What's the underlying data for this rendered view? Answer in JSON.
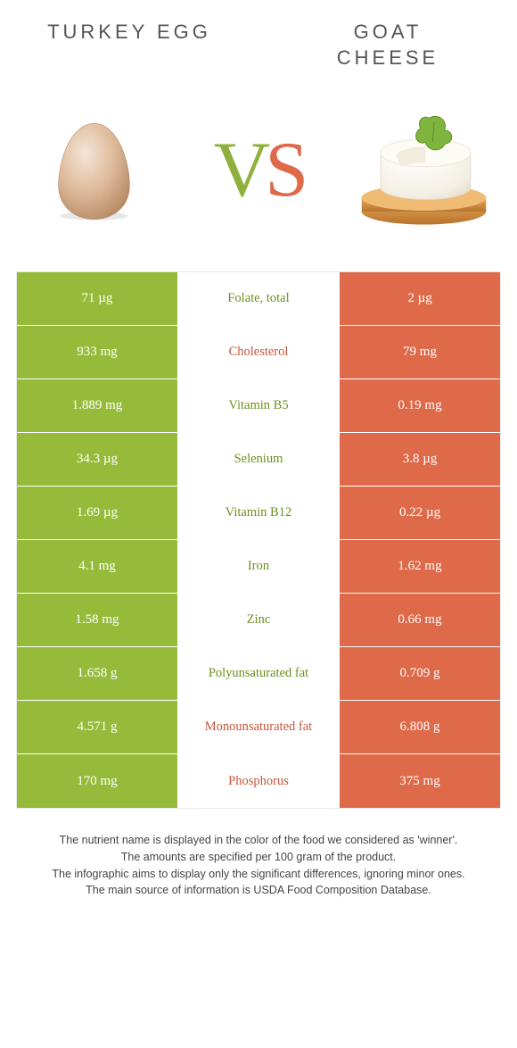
{
  "header": {
    "left_title": "TURKEY EGG",
    "right_title_line1": "GOAT",
    "right_title_line2": "CHEESE"
  },
  "vs": {
    "v": "V",
    "s": "S"
  },
  "colors": {
    "left_bg": "#96bb3a",
    "right_bg": "#de6a4a",
    "left_text": "#6d8f1e",
    "right_text": "#c8543a",
    "background": "#ffffff",
    "border": "#e8e8e8"
  },
  "table": {
    "rows": [
      {
        "left": "71 µg",
        "label": "Folate, total",
        "right": "2 µg",
        "winner": "left"
      },
      {
        "left": "933 mg",
        "label": "Cholesterol",
        "right": "79 mg",
        "winner": "right"
      },
      {
        "left": "1.889 mg",
        "label": "Vitamin B5",
        "right": "0.19 mg",
        "winner": "left"
      },
      {
        "left": "34.3 µg",
        "label": "Selenium",
        "right": "3.8 µg",
        "winner": "left"
      },
      {
        "left": "1.69 µg",
        "label": "Vitamin B12",
        "right": "0.22 µg",
        "winner": "left"
      },
      {
        "left": "4.1 mg",
        "label": "Iron",
        "right": "1.62 mg",
        "winner": "left"
      },
      {
        "left": "1.58 mg",
        "label": "Zinc",
        "right": "0.66 mg",
        "winner": "left"
      },
      {
        "left": "1.658 g",
        "label": "Polyunsaturated fat",
        "right": "0.709 g",
        "winner": "left"
      },
      {
        "left": "4.571 g",
        "label": "Monounsaturated fat",
        "right": "6.808 g",
        "winner": "right"
      },
      {
        "left": "170 mg",
        "label": "Phosphorus",
        "right": "375 mg",
        "winner": "right"
      }
    ]
  },
  "footer": {
    "line1": "The nutrient name is displayed in the color of the food we considered as 'winner'.",
    "line2": "The amounts are specified per 100 gram of the product.",
    "line3": "The infographic aims to display only the significant differences, ignoring minor ones.",
    "line4": "The main source of information is USDA Food Composition Database."
  },
  "icons": {
    "left": "turkey-egg-icon",
    "right": "goat-cheese-icon"
  }
}
